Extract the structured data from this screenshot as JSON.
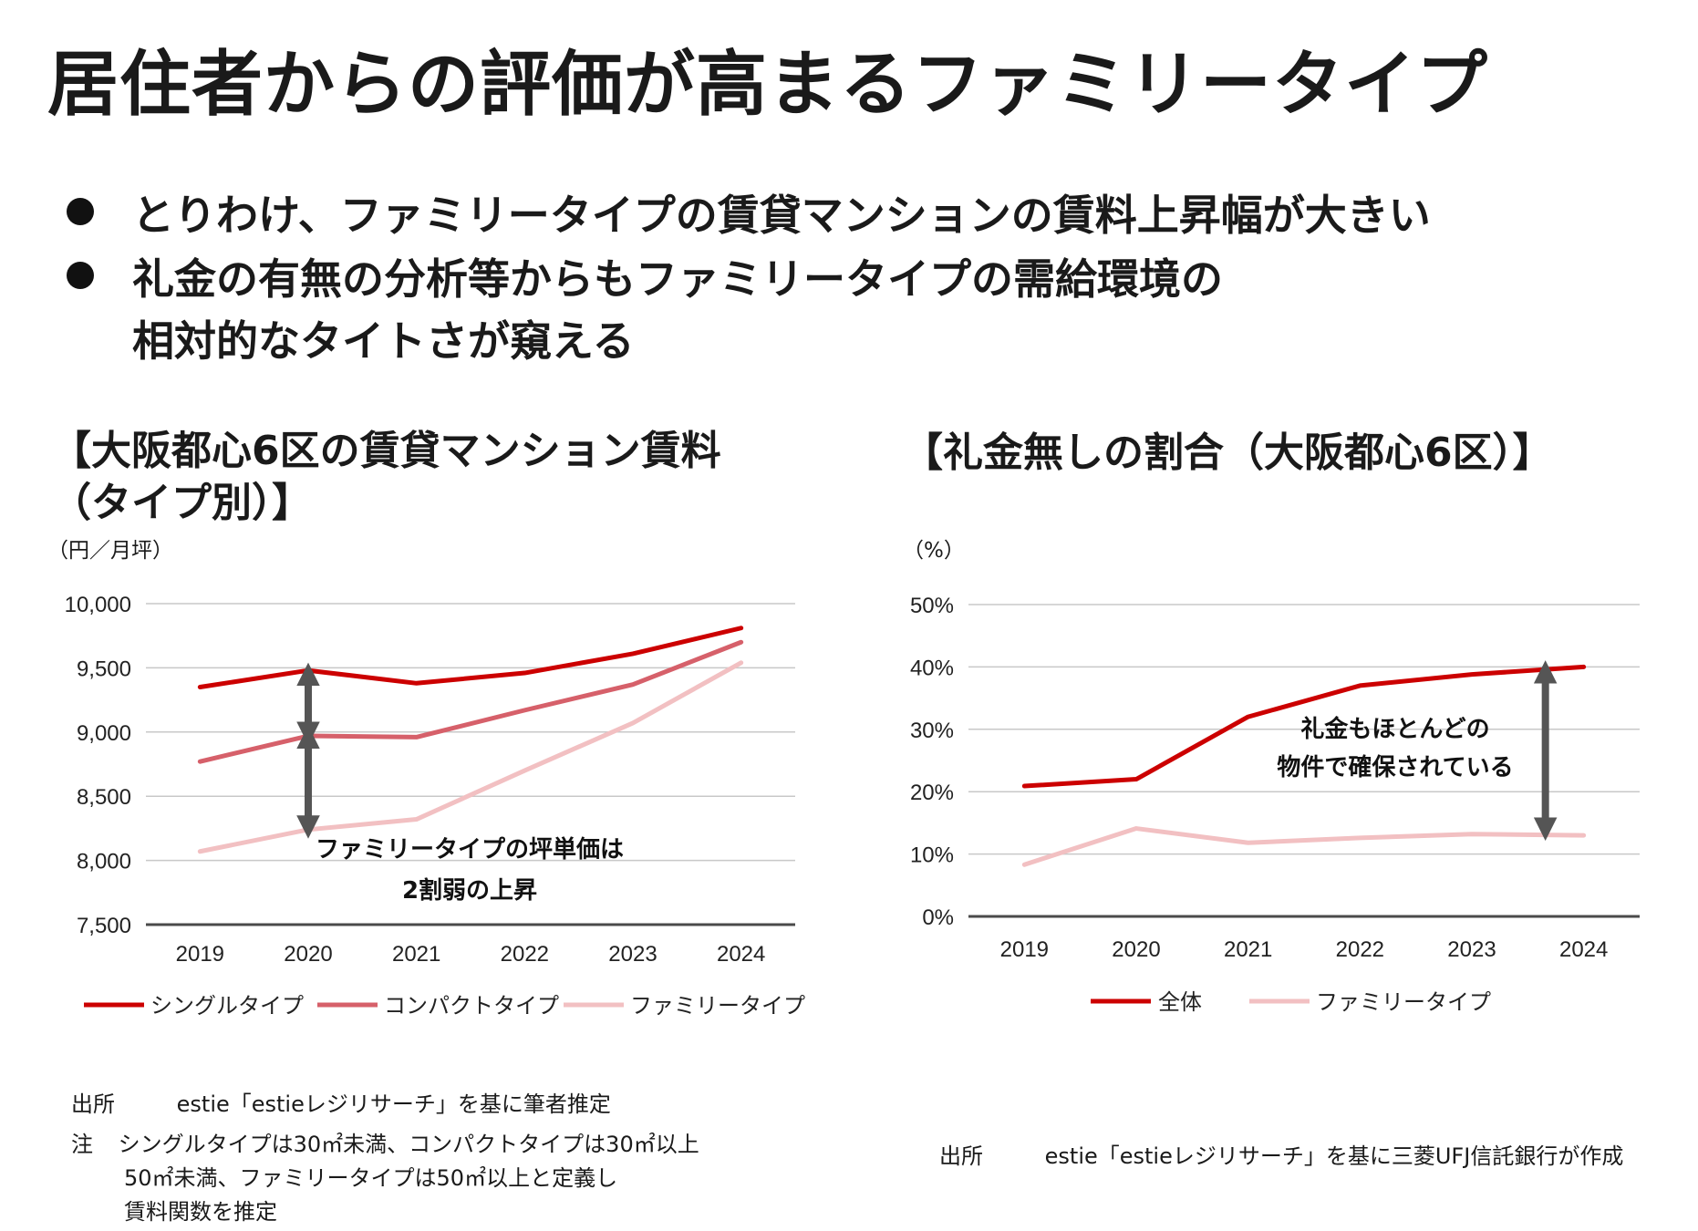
{
  "title": "居住者からの評価が高まるファミリータイプ",
  "bullets": [
    "とりわけ、ファミリータイプの賃貸マンションの賃料上昇幅が大きい",
    "礼金の有無の分析等からもファミリータイプの需給環境の",
    "相対的なタイトさが窺える"
  ],
  "left_panel": {
    "heading_line1": "【大阪都心6区の賃貸マンション賃料",
    "heading_line2": "（タイプ別）】",
    "unit": "（円／月坪）",
    "annotation_line1": "ファミリータイプの坪単価は",
    "annotation_line2": "2割弱の上昇",
    "source_label": "出所",
    "source_text": "estie「estieレジリサーチ」を基に筆者推定",
    "note_label": "注",
    "note_line1": "シングルタイプは30㎡未満、コンパクトタイプは30㎡以上",
    "note_line2": "50㎡未満、ファミリータイプは50㎡以上と定義し",
    "note_line3": "賃料関数を推定"
  },
  "right_panel": {
    "heading": "【礼金無しの割合（大阪都心6区）】",
    "unit": "（%）",
    "annotation_line1": "礼金もほとんどの",
    "annotation_line2": "物件で確保されている",
    "source_label": "出所",
    "source_text": "estie「estieレジリサーチ」を基に三菱UFJ信託銀行が作成"
  },
  "chart_data": [
    {
      "type": "line",
      "title": "大阪都心6区の賃貸マンション賃料（タイプ別）",
      "ylabel": "円／月坪",
      "x": [
        "2019",
        "2020",
        "2021",
        "2022",
        "2023",
        "2024"
      ],
      "ylim": [
        7500,
        10000
      ],
      "yticks": [
        7500,
        8000,
        8500,
        9000,
        9500,
        10000
      ],
      "ytick_labels": [
        "7,500",
        "8,000",
        "8,500",
        "9,000",
        "9,500",
        "10,000"
      ],
      "series": [
        {
          "name": "シングルタイプ",
          "color": "#cc0000",
          "values": [
            9350,
            9480,
            9380,
            9460,
            9610,
            9810
          ]
        },
        {
          "name": "コンパクトタイプ",
          "color": "#d6606a",
          "values": [
            8770,
            8970,
            8960,
            9170,
            9370,
            9700
          ]
        },
        {
          "name": "ファミリータイプ",
          "color": "#f2c0c2",
          "values": [
            8070,
            8240,
            8320,
            8700,
            9070,
            9540
          ]
        }
      ],
      "arrows": [
        {
          "x": "2020",
          "from": 9450,
          "to": 8990
        },
        {
          "x": "2020",
          "from": 8960,
          "to": 8260
        }
      ],
      "grid": true,
      "legend": "bottom"
    },
    {
      "type": "line",
      "title": "礼金無しの割合（大阪都心6区）",
      "ylabel": "%",
      "x": [
        "2019",
        "2020",
        "2021",
        "2022",
        "2023",
        "2024"
      ],
      "ylim": [
        0,
        50
      ],
      "yticks": [
        0,
        10,
        20,
        30,
        40,
        50
      ],
      "ytick_labels": [
        "0%",
        "10%",
        "20%",
        "30%",
        "40%",
        "50%"
      ],
      "series": [
        {
          "name": "全体",
          "color": "#cc0000",
          "values": [
            20.9,
            22.0,
            32.0,
            37.0,
            38.8,
            40.0
          ]
        },
        {
          "name": "ファミリータイプ",
          "color": "#f2c0c2",
          "values": [
            8.3,
            14.1,
            11.8,
            12.6,
            13.2,
            13.0
          ]
        }
      ],
      "arrows": [
        {
          "x": "2024",
          "from": 39.2,
          "to": 14.0
        }
      ],
      "grid": true,
      "legend": "bottom"
    }
  ]
}
